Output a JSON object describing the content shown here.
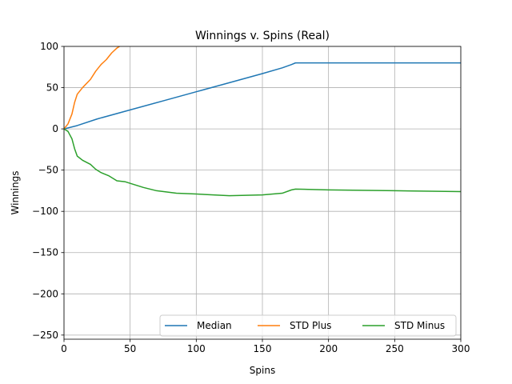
{
  "chart_data": {
    "type": "line",
    "title": "Winnings v. Spins (Real)",
    "xlabel": "Spins",
    "ylabel": "Winnings",
    "xlim": [
      0,
      300
    ],
    "ylim": [
      -255,
      100
    ],
    "xticks": [
      0,
      50,
      100,
      150,
      200,
      250,
      300
    ],
    "yticks": [
      100,
      50,
      0,
      -50,
      -100,
      -150,
      -200,
      -250
    ],
    "xtick_labels": [
      "0",
      "50",
      "100",
      "150",
      "200",
      "250",
      "300"
    ],
    "ytick_labels": [
      "100",
      "50",
      "0",
      "−50",
      "−100",
      "−150",
      "−200",
      "−250"
    ],
    "grid": true,
    "legend": {
      "placement": "lower-right",
      "columns": 3
    },
    "series": [
      {
        "name": "Median",
        "color": "#1f77b4",
        "x": [
          0,
          10,
          25,
          50,
          75,
          100,
          125,
          150,
          165,
          172,
          175,
          200,
          250,
          300
        ],
        "y": [
          0,
          4,
          12,
          23,
          34,
          45,
          56,
          67,
          74,
          78,
          80,
          80,
          80,
          80
        ]
      },
      {
        "name": "STD Plus",
        "color": "#ff7f0e",
        "x": [
          0,
          3,
          6,
          8,
          10,
          14,
          20,
          24,
          28,
          32,
          36,
          40,
          42
        ],
        "y": [
          0,
          6,
          18,
          32,
          42,
          50,
          60,
          70,
          78,
          84,
          92,
          98,
          100
        ]
      },
      {
        "name": "STD Minus",
        "color": "#2ca02c",
        "x": [
          0,
          3,
          6,
          8,
          10,
          14,
          20,
          24,
          28,
          34,
          40,
          46,
          52,
          60,
          70,
          85,
          100,
          125,
          150,
          165,
          172,
          175,
          200,
          250,
          300
        ],
        "y": [
          0,
          -3,
          -12,
          -24,
          -33,
          -38,
          -43,
          -49,
          -53,
          -57,
          -63,
          -64,
          -67,
          -71,
          -75,
          -78,
          -79,
          -81,
          -80,
          -78,
          -74,
          -73,
          -74,
          -75,
          -76
        ]
      }
    ]
  }
}
